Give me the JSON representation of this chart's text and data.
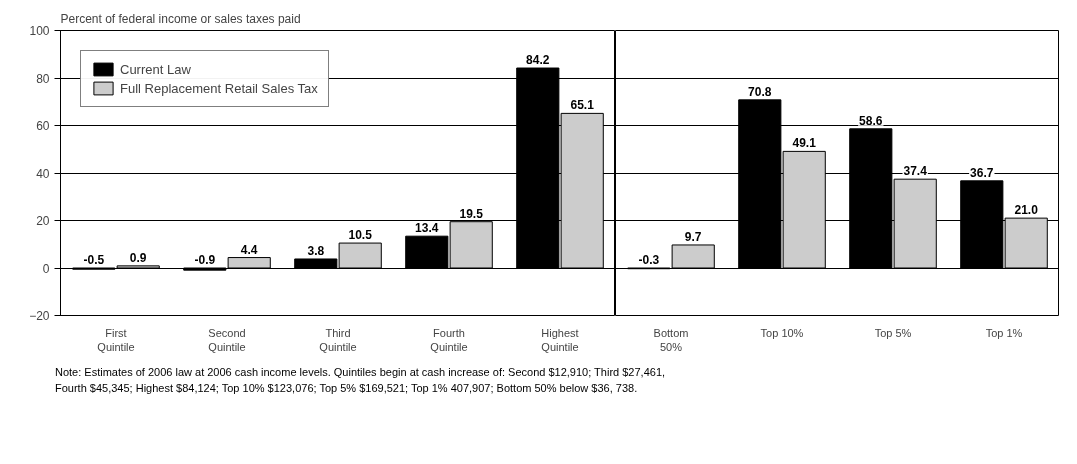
{
  "chart_data": [
    {
      "type": "bar",
      "ylabel": "Percent of federal income or sales taxes paid",
      "categories": [
        "First\nQuintile",
        "Second\nQuintile",
        "Third\nQuintile",
        "Fourth\nQuintile",
        "Highest\nQuintile"
      ],
      "series": [
        {
          "name": "Current Law",
          "color": "#000000",
          "values": [
            -0.5,
            -0.9,
            3.8,
            13.4,
            84.2
          ]
        },
        {
          "name": "Full Replacement Retail Sales Tax",
          "color": "#cccccc",
          "values": [
            0.9,
            4.4,
            10.5,
            19.5,
            65.1
          ]
        }
      ],
      "ylim": [
        -20,
        100
      ],
      "yticks": [
        -20,
        0,
        20,
        40,
        60,
        80,
        100
      ],
      "grid": "y",
      "legend": "top left",
      "data_labels": true,
      "annotations": [
        "Note: Estimates of 2006 law at 2006 cash income levels. Quintiles begin at cash increase of: Second $12,910; Third $27,461,\nFourth $45,345; Highest $84,124; Top 10% $123,076; Top 5% $169,521; Top 1% 407,907; Bottom 50% below $36, 738."
      ]
    },
    {
      "type": "bar",
      "categories": [
        "Bottom\n50%",
        "Top 10%",
        "Top 5%",
        "Top 1%"
      ],
      "series": [
        {
          "color": "#000000",
          "values": [
            -0.3,
            70.8,
            58.6,
            36.7
          ]
        },
        {
          "color": "#cccccc",
          "values": [
            9.7,
            49.1,
            37.4,
            21.0
          ],
          "value_labels": [
            "9.7",
            "49.1",
            "37.4",
            "21.0"
          ]
        }
      ],
      "ylim": [
        -20,
        100
      ],
      "yticks": [
        -20,
        0,
        20,
        40,
        60,
        80,
        100
      ],
      "grid": "y",
      "tick_labels": "x",
      "data_labels": true
    }
  ]
}
